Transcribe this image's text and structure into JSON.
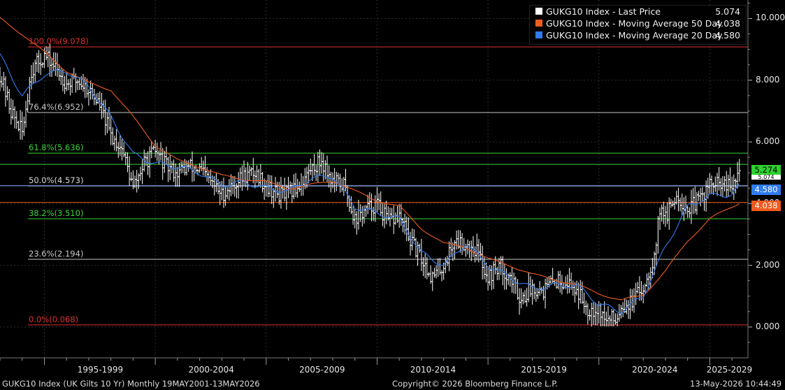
{
  "chart_data": {
    "type": "candlestick",
    "title": "GUKG10 Index (UK Gilts 10 Yr) Monthly 19MAY2001-13MAY2026",
    "x_categories": [
      "1995-1999",
      "2000-2004",
      "2005-2009",
      "2010-2014",
      "2015-2019",
      "2020-2024",
      "2025-2029"
    ],
    "y_ticks": [
      "10.000",
      "8.000",
      "6.000",
      "4.000",
      "2.000",
      "0.000"
    ],
    "ylim": [
      -1.0,
      10.6
    ],
    "grid": true,
    "legend_position": "top-right",
    "series": [
      {
        "name": "GUKG10 Index - Last Price",
        "value_label": "5.074",
        "color": "#ffffff",
        "anchors": [
          [
            1993.0,
            8.2
          ],
          [
            1993.5,
            7.0
          ],
          [
            1994.0,
            6.3
          ],
          [
            1994.4,
            8.3
          ],
          [
            1995.0,
            8.8
          ],
          [
            1995.5,
            8.4
          ],
          [
            1996.0,
            7.9
          ],
          [
            1996.5,
            8.0
          ],
          [
            1997.0,
            7.7
          ],
          [
            1997.5,
            7.2
          ],
          [
            1998.0,
            6.2
          ],
          [
            1998.5,
            5.8
          ],
          [
            1999.0,
            4.5
          ],
          [
            1999.5,
            5.3
          ],
          [
            2000.0,
            5.7
          ],
          [
            2000.5,
            5.2
          ],
          [
            2001.0,
            5.0
          ],
          [
            2001.5,
            5.2
          ],
          [
            2002.0,
            5.1
          ],
          [
            2002.5,
            4.7
          ],
          [
            2003.0,
            4.3
          ],
          [
            2003.5,
            4.6
          ],
          [
            2004.0,
            4.9
          ],
          [
            2004.5,
            5.0
          ],
          [
            2005.0,
            4.6
          ],
          [
            2005.5,
            4.3
          ],
          [
            2006.0,
            4.3
          ],
          [
            2006.5,
            4.6
          ],
          [
            2007.0,
            5.1
          ],
          [
            2007.5,
            5.4
          ],
          [
            2008.0,
            4.7
          ],
          [
            2008.5,
            4.6
          ],
          [
            2009.0,
            3.5
          ],
          [
            2009.5,
            3.8
          ],
          [
            2010.0,
            4.0
          ],
          [
            2010.5,
            3.4
          ],
          [
            2011.0,
            3.6
          ],
          [
            2011.5,
            2.8
          ],
          [
            2012.0,
            2.2
          ],
          [
            2012.5,
            1.6
          ],
          [
            2013.0,
            2.0
          ],
          [
            2013.5,
            2.8
          ],
          [
            2014.0,
            2.7
          ],
          [
            2014.5,
            2.5
          ],
          [
            2015.0,
            1.6
          ],
          [
            2015.5,
            2.0
          ],
          [
            2016.0,
            1.6
          ],
          [
            2016.5,
            0.9
          ],
          [
            2017.0,
            1.3
          ],
          [
            2017.5,
            1.2
          ],
          [
            2018.0,
            1.5
          ],
          [
            2018.5,
            1.5
          ],
          [
            2019.0,
            1.2
          ],
          [
            2019.5,
            0.6
          ],
          [
            2020.0,
            0.6
          ],
          [
            2020.3,
            0.2
          ],
          [
            2020.8,
            0.3
          ],
          [
            2021.0,
            0.7
          ],
          [
            2021.5,
            0.8
          ],
          [
            2022.0,
            1.3
          ],
          [
            2022.5,
            2.3
          ],
          [
            2022.8,
            4.1
          ],
          [
            2023.0,
            3.5
          ],
          [
            2023.5,
            4.3
          ],
          [
            2024.0,
            3.8
          ],
          [
            2024.5,
            4.1
          ],
          [
            2025.0,
            4.6
          ],
          [
            2025.5,
            4.6
          ],
          [
            2026.0,
            4.5
          ],
          [
            2026.35,
            5.07
          ]
        ]
      },
      {
        "name": "GUKG10 Index - Moving Average 50 Day",
        "value_label": "4.038",
        "color": "#f05a1e",
        "anchors": [
          [
            1993.0,
            10.0
          ],
          [
            1994.0,
            9.5
          ],
          [
            1995.0,
            8.9
          ],
          [
            1996.0,
            8.3
          ],
          [
            1997.0,
            7.9
          ],
          [
            1998.0,
            7.7
          ],
          [
            1999.0,
            6.8
          ],
          [
            2000.0,
            5.9
          ],
          [
            2001.0,
            5.4
          ],
          [
            2002.0,
            5.2
          ],
          [
            2003.0,
            4.9
          ],
          [
            2004.0,
            4.8
          ],
          [
            2005.0,
            4.7
          ],
          [
            2006.0,
            4.5
          ],
          [
            2007.0,
            4.6
          ],
          [
            2008.0,
            4.75
          ],
          [
            2009.0,
            4.4
          ],
          [
            2010.0,
            4.1
          ],
          [
            2011.0,
            3.9
          ],
          [
            2012.0,
            3.2
          ],
          [
            2013.0,
            2.7
          ],
          [
            2014.0,
            2.6
          ],
          [
            2015.0,
            2.2
          ],
          [
            2016.0,
            2.0
          ],
          [
            2017.0,
            1.7
          ],
          [
            2018.0,
            1.55
          ],
          [
            2019.0,
            1.35
          ],
          [
            2020.0,
            1.1
          ],
          [
            2021.0,
            0.85
          ],
          [
            2022.0,
            1.05
          ],
          [
            2023.0,
            1.8
          ],
          [
            2024.0,
            2.8
          ],
          [
            2025.0,
            3.5
          ],
          [
            2026.35,
            4.04
          ]
        ]
      },
      {
        "name": "GUKG10 Index - Moving Average 20 Day",
        "value_label": "4.580",
        "color": "#2f7bf0",
        "anchors": [
          [
            1993.0,
            8.8
          ],
          [
            1994.0,
            7.5
          ],
          [
            1995.0,
            8.2
          ],
          [
            1996.0,
            8.3
          ],
          [
            1997.0,
            7.8
          ],
          [
            1998.0,
            6.8
          ],
          [
            1999.0,
            5.6
          ],
          [
            2000.0,
            5.3
          ],
          [
            2001.0,
            5.2
          ],
          [
            2002.0,
            5.0
          ],
          [
            2003.0,
            4.6
          ],
          [
            2004.0,
            4.7
          ],
          [
            2005.0,
            4.5
          ],
          [
            2006.0,
            4.4
          ],
          [
            2007.0,
            4.8
          ],
          [
            2008.0,
            4.9
          ],
          [
            2009.0,
            3.9
          ],
          [
            2010.0,
            3.7
          ],
          [
            2011.0,
            3.5
          ],
          [
            2012.0,
            2.4
          ],
          [
            2013.0,
            2.0
          ],
          [
            2014.0,
            2.7
          ],
          [
            2015.0,
            2.0
          ],
          [
            2016.0,
            1.6
          ],
          [
            2017.0,
            1.25
          ],
          [
            2018.0,
            1.35
          ],
          [
            2019.0,
            1.35
          ],
          [
            2020.0,
            0.75
          ],
          [
            2021.0,
            0.5
          ],
          [
            2022.0,
            1.0
          ],
          [
            2023.0,
            2.6
          ],
          [
            2024.0,
            3.9
          ],
          [
            2025.0,
            4.25
          ],
          [
            2026.0,
            4.3
          ],
          [
            2026.35,
            4.58
          ]
        ]
      }
    ],
    "fibonacci_levels": [
      {
        "label": "100.0%(9.078)",
        "value": 9.078,
        "color": "#e03030"
      },
      {
        "label": "76.4%(6.952)",
        "value": 6.952,
        "color": "#c8c8c8"
      },
      {
        "label": "61.8%(5.636)",
        "value": 5.636,
        "color": "#39d439"
      },
      {
        "label": "50.0%(4.573)",
        "value": 4.573,
        "color": "#d8d8d8"
      },
      {
        "label": "38.2%(3.510)",
        "value": 3.51,
        "color": "#39d439"
      },
      {
        "label": "23.6%(2.194)",
        "value": 2.194,
        "color": "#c8c8c8"
      },
      {
        "label": "0.0%(0.068)",
        "value": 0.068,
        "color": "#e03030"
      }
    ],
    "horizontal_lines": [
      {
        "value": 5.274,
        "color": "#39d439"
      },
      {
        "value": 4.58,
        "color": "#8ab4ff"
      },
      {
        "value": 4.038,
        "color": "#f05a1e"
      }
    ],
    "price_tags": [
      {
        "label": "5.274",
        "value": 5.274,
        "bg": "#2ed12e",
        "fg": "#000000"
      },
      {
        "label": "5.074",
        "value": 5.074,
        "bg": "#ffffff",
        "fg": "#000000"
      },
      {
        "label": "4.580",
        "value": 4.58,
        "bg": "#2f7bf0",
        "fg": "#ffffff"
      },
      {
        "label": "4.038",
        "value": 4.038,
        "bg": "#f05a1e",
        "fg": "#ffffff"
      }
    ]
  },
  "footer": {
    "left": "GUKG10 Index (UK Gilts 10 Yr) Monthly 19MAY2001-13MAY2026",
    "center": "Copyright© 2026 Bloomberg Finance L.P.",
    "right": "13-May-2026 10:44:49"
  }
}
